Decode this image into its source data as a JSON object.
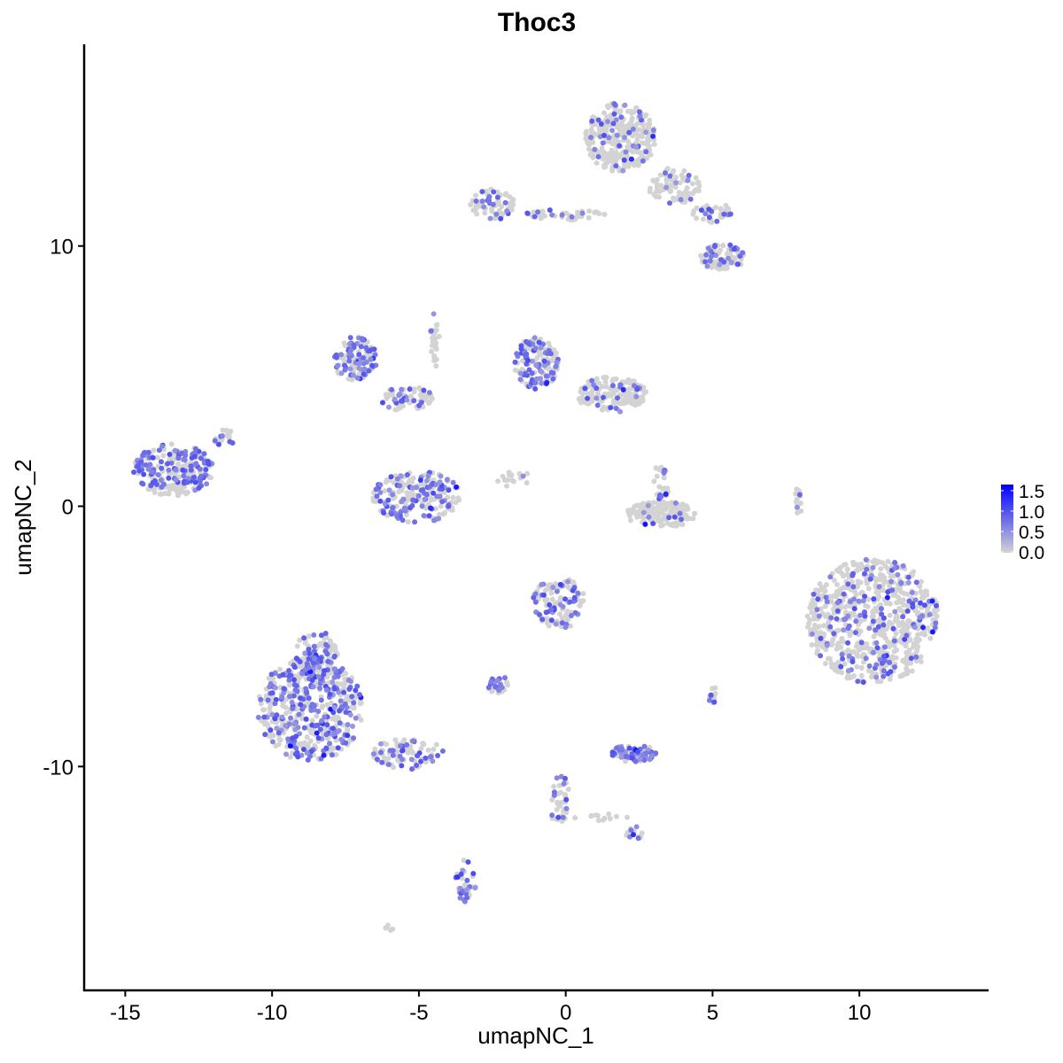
{
  "chart_data": {
    "type": "scatter",
    "title": "Thoc3",
    "xlabel": "umapNC_1",
    "ylabel": "umapNC_2",
    "xlim": [
      -16.4,
      14.4
    ],
    "ylim": [
      -18.6,
      17.75
    ],
    "x_ticks": [
      -15,
      -10,
      -5,
      0,
      5,
      10
    ],
    "y_ticks": [
      -10,
      0,
      10
    ],
    "grid": false,
    "colors": {
      "low": "#d3d3d3",
      "high": "#0000ff"
    },
    "legend": {
      "placement": "right",
      "ticks": [
        "1.5",
        "1.0",
        "0.5",
        "0.0"
      ],
      "range": [
        0,
        1.65
      ]
    },
    "clusters": [
      {
        "cx": 1.87,
        "cy": 14.17,
        "rx": 1.2,
        "ry": 1.36,
        "n": 300,
        "expr_frac": 0.15
      },
      {
        "cx": 3.68,
        "cy": 12.3,
        "rx": 0.9,
        "ry": 0.7,
        "n": 80,
        "expr_frac": 0.1
      },
      {
        "cx": 5.34,
        "cy": 9.57,
        "rx": 0.75,
        "ry": 0.5,
        "n": 100,
        "expr_frac": 0.2
      },
      {
        "cx": 5.0,
        "cy": 11.3,
        "rx": 0.7,
        "ry": 0.4,
        "n": 40,
        "expr_frac": 0.15
      },
      {
        "cx": -2.5,
        "cy": 11.6,
        "rx": 0.75,
        "ry": 0.6,
        "n": 70,
        "expr_frac": 0.3
      },
      {
        "cx": 0.06,
        "cy": 11.2,
        "rx": 1.6,
        "ry": 0.2,
        "n": 40,
        "expr_frac": 0.15
      },
      {
        "cx": -13.36,
        "cy": 1.4,
        "rx": 1.36,
        "ry": 1.0,
        "n": 250,
        "expr_frac": 0.45
      },
      {
        "cx": -11.6,
        "cy": 2.6,
        "rx": 0.36,
        "ry": 0.34,
        "n": 20,
        "expr_frac": 0.3
      },
      {
        "cx": -5.07,
        "cy": 0.37,
        "rx": 1.5,
        "ry": 1.0,
        "n": 220,
        "expr_frac": 0.4
      },
      {
        "cx": -7.18,
        "cy": 5.66,
        "rx": 0.75,
        "ry": 0.85,
        "n": 120,
        "expr_frac": 0.45
      },
      {
        "cx": -5.37,
        "cy": 4.12,
        "rx": 0.9,
        "ry": 0.5,
        "n": 80,
        "expr_frac": 0.35
      },
      {
        "cx": -4.46,
        "cy": 6.5,
        "rx": 0.15,
        "ry": 1.2,
        "n": 25,
        "expr_frac": 0.2
      },
      {
        "cx": -1.0,
        "cy": 5.49,
        "rx": 0.75,
        "ry": 1.0,
        "n": 150,
        "expr_frac": 0.45
      },
      {
        "cx": 1.57,
        "cy": 4.29,
        "rx": 1.2,
        "ry": 0.68,
        "n": 150,
        "expr_frac": 0.2
      },
      {
        "cx": 3.23,
        "cy": -0.31,
        "rx": 1.2,
        "ry": 0.5,
        "n": 150,
        "expr_frac": 0.03
      },
      {
        "cx": 3.23,
        "cy": 0.89,
        "rx": 0.3,
        "ry": 0.68,
        "n": 30,
        "expr_frac": 0.25
      },
      {
        "cx": -1.75,
        "cy": 1.06,
        "rx": 0.6,
        "ry": 0.4,
        "n": 15,
        "expr_frac": 0.2
      },
      {
        "cx": 7.9,
        "cy": 0.03,
        "rx": 0.18,
        "ry": 0.85,
        "n": 15,
        "expr_frac": 0.1
      },
      {
        "cx": 10.46,
        "cy": -4.4,
        "rx": 2.26,
        "ry": 2.4,
        "n": 700,
        "expr_frac": 0.18
      },
      {
        "cx": -0.24,
        "cy": -3.71,
        "rx": 0.9,
        "ry": 1.0,
        "n": 120,
        "expr_frac": 0.35
      },
      {
        "cx": -8.69,
        "cy": -7.8,
        "rx": 1.8,
        "ry": 2.0,
        "n": 500,
        "expr_frac": 0.45
      },
      {
        "cx": -8.5,
        "cy": -5.76,
        "rx": 0.75,
        "ry": 1.0,
        "n": 100,
        "expr_frac": 0.4
      },
      {
        "cx": -5.37,
        "cy": -9.5,
        "rx": 1.2,
        "ry": 0.6,
        "n": 90,
        "expr_frac": 0.4
      },
      {
        "cx": 2.32,
        "cy": -9.5,
        "rx": 0.75,
        "ry": 0.34,
        "n": 70,
        "expr_frac": 0.7
      },
      {
        "cx": -2.35,
        "cy": -6.85,
        "rx": 0.45,
        "ry": 0.34,
        "n": 30,
        "expr_frac": 0.5
      },
      {
        "cx": -0.24,
        "cy": -11.2,
        "rx": 0.36,
        "ry": 1.0,
        "n": 40,
        "expr_frac": 0.3
      },
      {
        "cx": -3.4,
        "cy": -14.4,
        "rx": 0.36,
        "ry": 0.85,
        "n": 35,
        "expr_frac": 0.5
      },
      {
        "cx": 2.32,
        "cy": -12.57,
        "rx": 0.3,
        "ry": 0.27,
        "n": 15,
        "expr_frac": 0.3
      },
      {
        "cx": 5.04,
        "cy": -7.3,
        "rx": 0.18,
        "ry": 0.34,
        "n": 12,
        "expr_frac": 0.4
      },
      {
        "cx": 1.2,
        "cy": -12.0,
        "rx": 1.0,
        "ry": 0.2,
        "n": 12,
        "expr_frac": 0.1
      },
      {
        "cx": -6.0,
        "cy": -16.2,
        "rx": 0.15,
        "ry": 0.12,
        "n": 5,
        "expr_frac": 0.0
      }
    ]
  }
}
